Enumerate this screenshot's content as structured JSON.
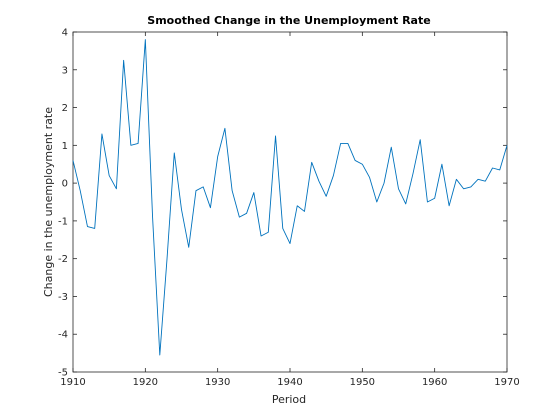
{
  "chart_data": {
    "type": "line",
    "title": "Smoothed Change in the Unemployment Rate",
    "xlabel": "Period",
    "ylabel": "Change in the unemployment rate",
    "xlim": [
      1910,
      1970
    ],
    "ylim": [
      -5,
      4
    ],
    "xticks": [
      1910,
      1920,
      1930,
      1940,
      1950,
      1960,
      1970
    ],
    "yticks": [
      -5,
      -4,
      -3,
      -2,
      -1,
      0,
      1,
      2,
      3,
      4
    ],
    "grid": false,
    "box": true,
    "series": [
      {
        "color": "#0072bd",
        "x": [
          1910,
          1911,
          1912,
          1913,
          1914,
          1915,
          1916,
          1917,
          1918,
          1919,
          1920,
          1921,
          1922,
          1923,
          1924,
          1925,
          1926,
          1927,
          1928,
          1929,
          1930,
          1931,
          1932,
          1933,
          1934,
          1935,
          1936,
          1937,
          1938,
          1939,
          1940,
          1941,
          1942,
          1943,
          1944,
          1945,
          1946,
          1947,
          1948,
          1949,
          1950,
          1951,
          1952,
          1953,
          1954,
          1955,
          1956,
          1957,
          1958,
          1959,
          1960,
          1961,
          1962,
          1963,
          1964,
          1965,
          1966,
          1967,
          1968,
          1969,
          1970
        ],
        "y": [
          0.6,
          -0.2,
          -1.15,
          -1.2,
          1.3,
          0.2,
          -0.15,
          3.25,
          1.0,
          1.05,
          3.8,
          -0.9,
          -4.55,
          -2.0,
          0.8,
          -0.7,
          -1.7,
          -0.2,
          -0.1,
          -0.65,
          0.7,
          1.45,
          -0.2,
          -0.9,
          -0.8,
          -0.25,
          -1.4,
          -1.3,
          1.25,
          -1.2,
          -1.6,
          -0.6,
          -0.75,
          0.55,
          0.05,
          -0.35,
          0.2,
          1.05,
          1.05,
          0.6,
          0.5,
          0.15,
          -0.5,
          0.0,
          0.95,
          -0.15,
          -0.55,
          0.25,
          1.15,
          -0.5,
          -0.4,
          0.5,
          -0.6,
          0.1,
          -0.15,
          -0.1,
          0.1,
          0.05,
          0.4,
          0.35,
          1.0
        ]
      }
    ]
  }
}
